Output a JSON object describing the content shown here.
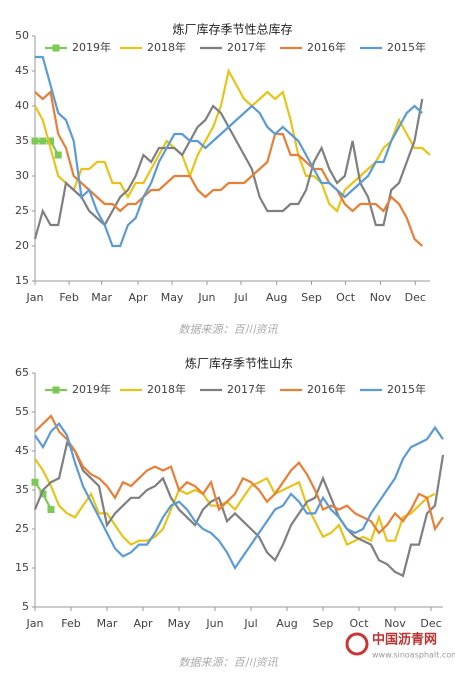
{
  "chart_data": [
    {
      "type": "line",
      "title": "炼厂库存季节性总库存",
      "source": "数据来源：百川资讯",
      "x": [
        0,
        1,
        2,
        3,
        4,
        5,
        6,
        7,
        8,
        9,
        10,
        11,
        12,
        13,
        14,
        15,
        16,
        17,
        18,
        19,
        20,
        21,
        22,
        23,
        24,
        25,
        26,
        27,
        28,
        29,
        30,
        31,
        32,
        33,
        34,
        35,
        36,
        37,
        38,
        39,
        40,
        41,
        42,
        43,
        44,
        45,
        46,
        47,
        48,
        49,
        50,
        51
      ],
      "xlim": [
        0,
        51
      ],
      "xticks": [
        {
          "value": 0,
          "label": "Jan"
        },
        {
          "value": 4.4,
          "label": "Feb"
        },
        {
          "value": 8.6,
          "label": "Mar"
        },
        {
          "value": 13.3,
          "label": "Apr"
        },
        {
          "value": 17.7,
          "label": "May"
        },
        {
          "value": 22.2,
          "label": "Jun"
        },
        {
          "value": 26.6,
          "label": "Jul"
        },
        {
          "value": 31.2,
          "label": "Aug"
        },
        {
          "value": 35.7,
          "label": "Sep"
        },
        {
          "value": 40.1,
          "label": "Oct"
        },
        {
          "value": 44.6,
          "label": "Nov"
        },
        {
          "value": 49.1,
          "label": "Dec"
        }
      ],
      "ylim": [
        15,
        50
      ],
      "yticks": [
        15,
        20,
        25,
        30,
        35,
        40,
        45,
        50
      ],
      "series": [
        {
          "name": "2019年",
          "color": "#7cc957",
          "marker": true,
          "values": [
            35,
            35,
            35,
            33,
            null,
            null,
            null,
            null,
            null,
            null,
            null,
            null,
            null,
            null,
            null,
            null,
            null,
            null,
            null,
            null,
            null,
            null,
            null,
            null,
            null,
            null,
            null,
            null,
            null,
            null,
            null,
            null,
            null,
            null,
            null,
            null,
            null,
            null,
            null,
            null,
            null,
            null,
            null,
            null,
            null,
            null,
            null,
            null,
            null,
            null,
            null,
            null
          ]
        },
        {
          "name": "2018年",
          "color": "#e8c41a",
          "values": [
            40,
            38,
            34,
            30,
            29,
            28,
            31,
            31,
            32,
            32,
            29,
            29,
            27,
            29,
            29,
            31,
            33,
            35,
            34,
            33,
            30,
            33,
            35,
            37,
            40,
            45,
            43,
            41,
            40,
            41,
            42,
            41,
            42,
            38,
            33,
            30,
            30,
            29,
            26,
            25,
            28,
            29,
            30,
            31,
            32,
            34,
            35,
            38,
            36,
            34,
            34,
            33
          ]
        },
        {
          "name": "2017年",
          "color": "#7f7f7f",
          "values": [
            21,
            25,
            23,
            23,
            29,
            28,
            27,
            25,
            24,
            23,
            25,
            27,
            28,
            30,
            33,
            32,
            34,
            34,
            34,
            33,
            35,
            37,
            38,
            40,
            39,
            37,
            35,
            33,
            31,
            27,
            25,
            25,
            25,
            26,
            26,
            28,
            32,
            34,
            31,
            29,
            30,
            35,
            29,
            27,
            23,
            23,
            28,
            29,
            32,
            35,
            41,
            null
          ]
        },
        {
          "name": "2016年",
          "color": "#e97f36",
          "values": [
            42,
            41,
            42,
            36,
            34,
            30,
            29,
            28,
            27,
            26,
            26,
            25,
            26,
            26,
            27,
            28,
            28,
            29,
            30,
            30,
            30,
            28,
            27,
            28,
            28,
            29,
            29,
            29,
            30,
            31,
            32,
            36,
            36,
            33,
            33,
            32,
            31,
            31,
            29,
            28,
            26,
            25,
            26,
            26,
            26,
            25,
            27,
            26,
            24,
            21,
            20,
            null
          ]
        },
        {
          "name": "2015年",
          "color": "#5b9bd5",
          "values": [
            47,
            47,
            43,
            39,
            38,
            35,
            27,
            28,
            25,
            23,
            20,
            20,
            23,
            24,
            27,
            29,
            32,
            34,
            36,
            36,
            35,
            35,
            34,
            35,
            36,
            37,
            38,
            39,
            40,
            39,
            37,
            36,
            37,
            36,
            35,
            33,
            31,
            29,
            29,
            28,
            27,
            28,
            29,
            30,
            32,
            32,
            35,
            37,
            39,
            40,
            39,
            null
          ]
        }
      ]
    },
    {
      "type": "line",
      "title": "炼厂库存季节性山东",
      "source": "数据来源：百川资讯",
      "x": [
        0,
        1,
        2,
        3,
        4,
        5,
        6,
        7,
        8,
        9,
        10,
        11,
        12,
        13,
        14,
        15,
        16,
        17,
        18,
        19,
        20,
        21,
        22,
        23,
        24,
        25,
        26,
        27,
        28,
        29,
        30,
        31,
        32,
        33,
        34,
        35,
        36,
        37,
        38,
        39,
        40,
        41,
        42,
        43,
        44,
        45,
        46,
        47,
        48,
        49,
        50,
        51
      ],
      "xlim": [
        0,
        51
      ],
      "xticks": [
        {
          "value": 0,
          "label": "Jan"
        },
        {
          "value": 4.5,
          "label": "Feb"
        },
        {
          "value": 9,
          "label": "Mar"
        },
        {
          "value": 13.5,
          "label": "Apr"
        },
        {
          "value": 18,
          "label": "May"
        },
        {
          "value": 22.5,
          "label": "Jun"
        },
        {
          "value": 27,
          "label": "Jul"
        },
        {
          "value": 31.5,
          "label": "Aug"
        },
        {
          "value": 36,
          "label": "Sep"
        },
        {
          "value": 40.5,
          "label": "Oct"
        },
        {
          "value": 45,
          "label": "Nov"
        },
        {
          "value": 49.5,
          "label": "Dec"
        }
      ],
      "ylim": [
        5,
        65
      ],
      "yticks": [
        5,
        15,
        25,
        35,
        45,
        55,
        65
      ],
      "series": [
        {
          "name": "2019年",
          "color": "#7cc957",
          "marker": true,
          "values": [
            37,
            34,
            30,
            null,
            null,
            null,
            null,
            null,
            null,
            null,
            null,
            null,
            null,
            null,
            null,
            null,
            null,
            null,
            null,
            null,
            null,
            null,
            null,
            null,
            null,
            null,
            null,
            null,
            null,
            null,
            null,
            null,
            null,
            null,
            null,
            null,
            null,
            null,
            null,
            null,
            null,
            null,
            null,
            null,
            null,
            null,
            null,
            null,
            null,
            null,
            null,
            null
          ]
        },
        {
          "name": "2018年",
          "color": "#e8c41a",
          "values": [
            43,
            40,
            36,
            31,
            29,
            28,
            31,
            34,
            29,
            29,
            26,
            23,
            21,
            22,
            22,
            23,
            25,
            30,
            35,
            34,
            35,
            34,
            31,
            31,
            32,
            30,
            33,
            36,
            37,
            38,
            34,
            35,
            36,
            37,
            31,
            27,
            23,
            24,
            26,
            21,
            22,
            23,
            22,
            28,
            22,
            22,
            28,
            29,
            31,
            33,
            34,
            null
          ]
        },
        {
          "name": "2017年",
          "color": "#7f7f7f",
          "values": [
            30,
            35,
            37,
            38,
            47,
            45,
            40,
            38,
            36,
            26,
            29,
            31,
            33,
            33,
            35,
            36,
            38,
            33,
            30,
            28,
            26,
            30,
            32,
            33,
            27,
            29,
            27,
            25,
            23,
            19,
            17,
            21,
            26,
            29,
            32,
            33,
            38,
            33,
            28,
            25,
            23,
            22,
            21,
            17,
            16,
            14,
            13,
            21,
            21,
            29,
            31,
            44
          ]
        },
        {
          "name": "2016年",
          "color": "#e97f36",
          "values": [
            50,
            52,
            54,
            50,
            48,
            45,
            41,
            39,
            38,
            36,
            33,
            37,
            36,
            38,
            40,
            41,
            40,
            41,
            35,
            37,
            36,
            34,
            37,
            30,
            32,
            34,
            38,
            37,
            35,
            32,
            34,
            37,
            40,
            42,
            39,
            35,
            30,
            31,
            30,
            31,
            29,
            28,
            27,
            24,
            26,
            29,
            27,
            30,
            34,
            33,
            25,
            28
          ]
        },
        {
          "name": "2015年",
          "color": "#5b9bd5",
          "values": [
            49,
            46,
            50,
            52,
            49,
            42,
            36,
            32,
            28,
            24,
            20,
            18,
            19,
            21,
            21,
            24,
            28,
            31,
            32,
            30,
            27,
            25,
            24,
            22,
            19,
            15,
            18,
            21,
            24,
            27,
            30,
            31,
            34,
            32,
            29,
            29,
            33,
            30,
            28,
            25,
            24,
            25,
            29,
            32,
            35,
            38,
            43,
            46,
            47,
            48,
            51,
            48
          ]
        }
      ]
    }
  ],
  "watermark": {
    "name": "中国沥青网",
    "url": "www.sinoasphalt.com"
  }
}
